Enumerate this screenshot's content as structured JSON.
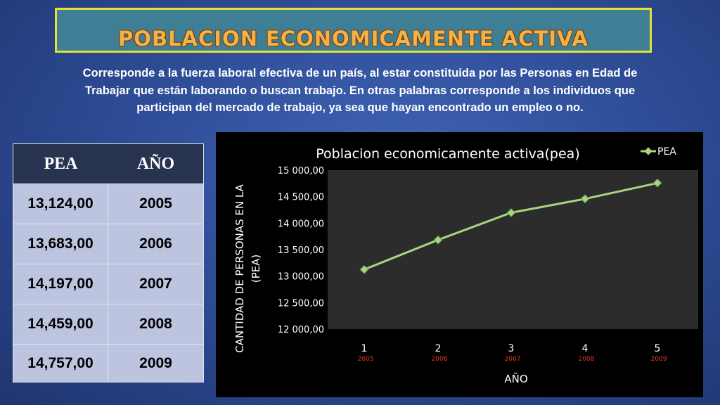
{
  "header": {
    "title": "POBLACION ECONOMICAMENTE ACTIVA"
  },
  "description": {
    "lines": [
      "Corresponde a la fuerza laboral efectiva de un país, al estar constituida por las Personas en Edad de",
      "Trabajar que están laborando o buscan trabajo. En otras palabras corresponde a los individuos que",
      "participan del mercado de trabajo, ya sea que hayan encontrado un empleo o no."
    ]
  },
  "table": {
    "headers": [
      "PEA",
      "AÑO"
    ],
    "rows": [
      [
        "13,124,00",
        "2005"
      ],
      [
        "13,683,00",
        "2006"
      ],
      [
        "14,197,00",
        "2007"
      ],
      [
        "14,459,00",
        "2008"
      ],
      [
        "14,757,00",
        "2009"
      ]
    ]
  },
  "colors": {
    "title_fill": "#f2b24a",
    "title_border": "#e6e034",
    "table_header": "#28334f",
    "table_body": "#bcc4df",
    "plot_area": "#2c2c2c",
    "series_line": "#a7d67e",
    "year_annotation": "#e53a24"
  },
  "chart_data": {
    "type": "line",
    "title": "Poblacion economicamente activa(pea)",
    "xlabel": "AÑO",
    "ylabel": "CANTIDAD DE PERSONAS EN LA (PEA)",
    "ylabel_lines": [
      "CANTIDAD DE PERSONAS EN LA",
      "(PEA)"
    ],
    "x": [
      1,
      2,
      3,
      4,
      5
    ],
    "x_tick_labels": [
      "1",
      "2",
      "3",
      "4",
      "5"
    ],
    "year_labels": [
      "2005",
      "2006",
      "2007",
      "2008",
      "2009"
    ],
    "ylim": [
      12000,
      15000
    ],
    "y_ticks": [
      12000,
      12500,
      13000,
      13500,
      14000,
      14500,
      15000
    ],
    "y_tick_labels": [
      "12 000,00",
      "12 500,00",
      "13 000,00",
      "13 500,00",
      "14 000,00",
      "14 500,00",
      "15 000,00"
    ],
    "series": [
      {
        "name": "PEA",
        "values": [
          13124,
          13683,
          14197,
          14459,
          14757
        ]
      }
    ],
    "legend": "top-right",
    "grid": false
  }
}
